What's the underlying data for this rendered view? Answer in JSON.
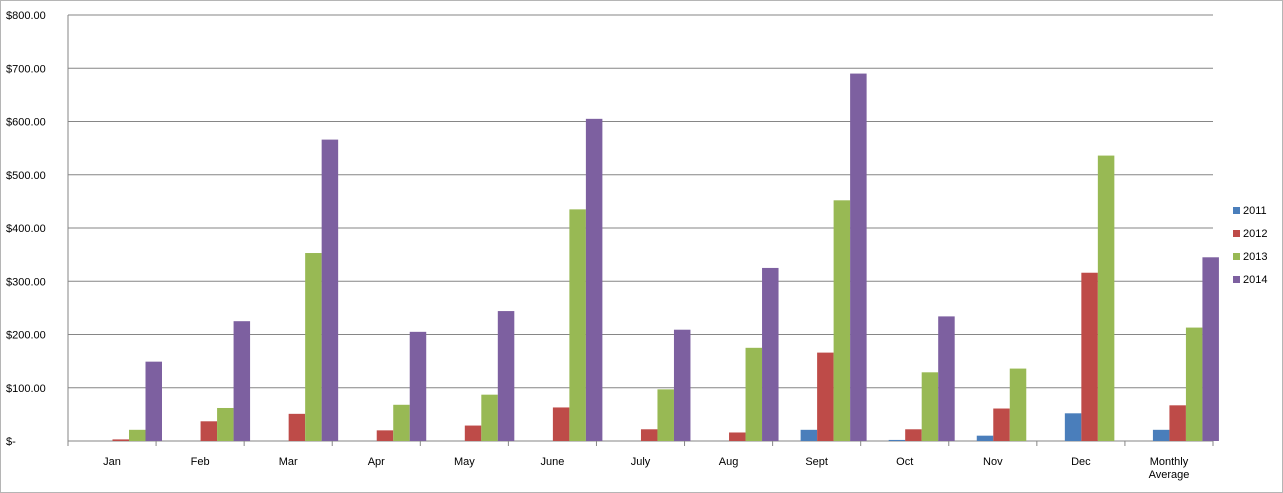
{
  "chart_data": {
    "type": "bar",
    "title": "",
    "xlabel": "",
    "ylabel": "",
    "ylim": [
      0,
      800
    ],
    "y_ticks": [
      {
        "value": 0,
        "label": "$-"
      },
      {
        "value": 100,
        "label": "$100.00"
      },
      {
        "value": 200,
        "label": "$200.00"
      },
      {
        "value": 300,
        "label": "$300.00"
      },
      {
        "value": 400,
        "label": "$400.00"
      },
      {
        "value": 500,
        "label": "$500.00"
      },
      {
        "value": 600,
        "label": "$600.00"
      },
      {
        "value": 700,
        "label": "$700.00"
      },
      {
        "value": 800,
        "label": "$800.00"
      }
    ],
    "grid": true,
    "legend_position": "right",
    "categories": [
      [
        "Jan"
      ],
      [
        "Feb"
      ],
      [
        "Mar"
      ],
      [
        "Apr"
      ],
      [
        "May"
      ],
      [
        "June"
      ],
      [
        "July"
      ],
      [
        "Aug"
      ],
      [
        "Sept"
      ],
      [
        "Oct"
      ],
      [
        "Nov"
      ],
      [
        "Dec"
      ],
      [
        "Monthly",
        "Average"
      ]
    ],
    "series": [
      {
        "name": "2011",
        "color": "#4a7ebb",
        "values": [
          0,
          0,
          0,
          0,
          0,
          0,
          0,
          0,
          21,
          2,
          10,
          52,
          21
        ]
      },
      {
        "name": "2012",
        "color": "#be4b48",
        "values": [
          3,
          37,
          51,
          20,
          29,
          63,
          22,
          16,
          166,
          22,
          61,
          316,
          67
        ]
      },
      {
        "name": "2013",
        "color": "#98b954",
        "values": [
          21,
          62,
          353,
          68,
          87,
          435,
          97,
          175,
          452,
          129,
          136,
          536,
          213
        ]
      },
      {
        "name": "2014",
        "color": "#7d60a0",
        "values": [
          149,
          225,
          566,
          205,
          244,
          605,
          209,
          325,
          690,
          234,
          0,
          0,
          345
        ]
      }
    ]
  }
}
